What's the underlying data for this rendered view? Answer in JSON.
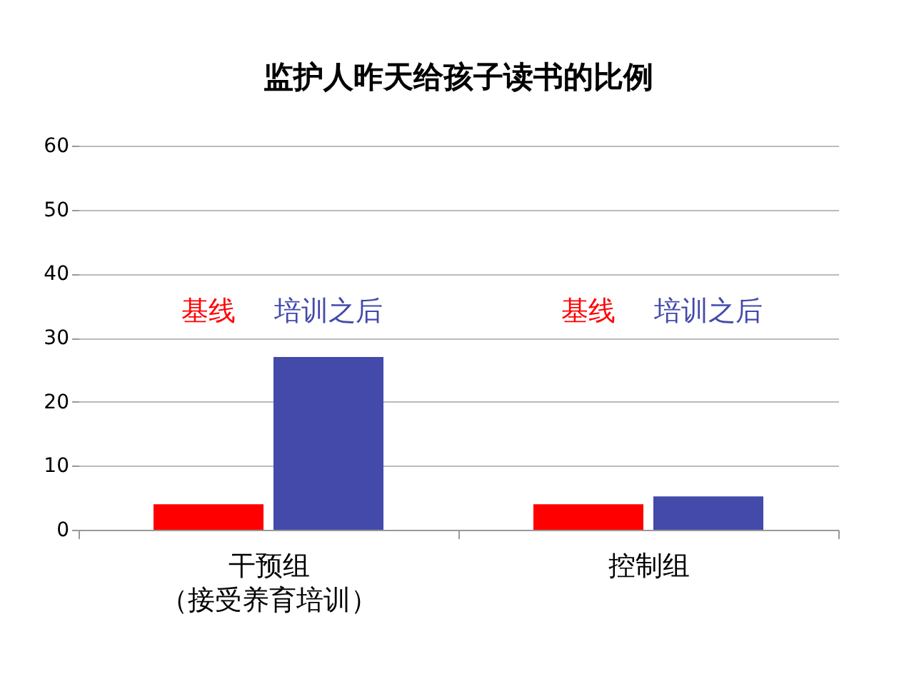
{
  "chart_data": {
    "type": "bar",
    "title": "监护人昨天给孩子读书的比例",
    "categories": [
      "干预组（接受养育培训）",
      "控制组"
    ],
    "series": [
      {
        "name": "基线",
        "color": "#ff0000",
        "values": [
          4,
          4
        ]
      },
      {
        "name": "培训之后",
        "color": "#434aaa",
        "values": [
          27,
          5.2
        ]
      }
    ],
    "ylim": [
      0,
      60
    ],
    "yticks": [
      0,
      10,
      20,
      30,
      40,
      50,
      60
    ],
    "grid": "y",
    "legend": false
  }
}
